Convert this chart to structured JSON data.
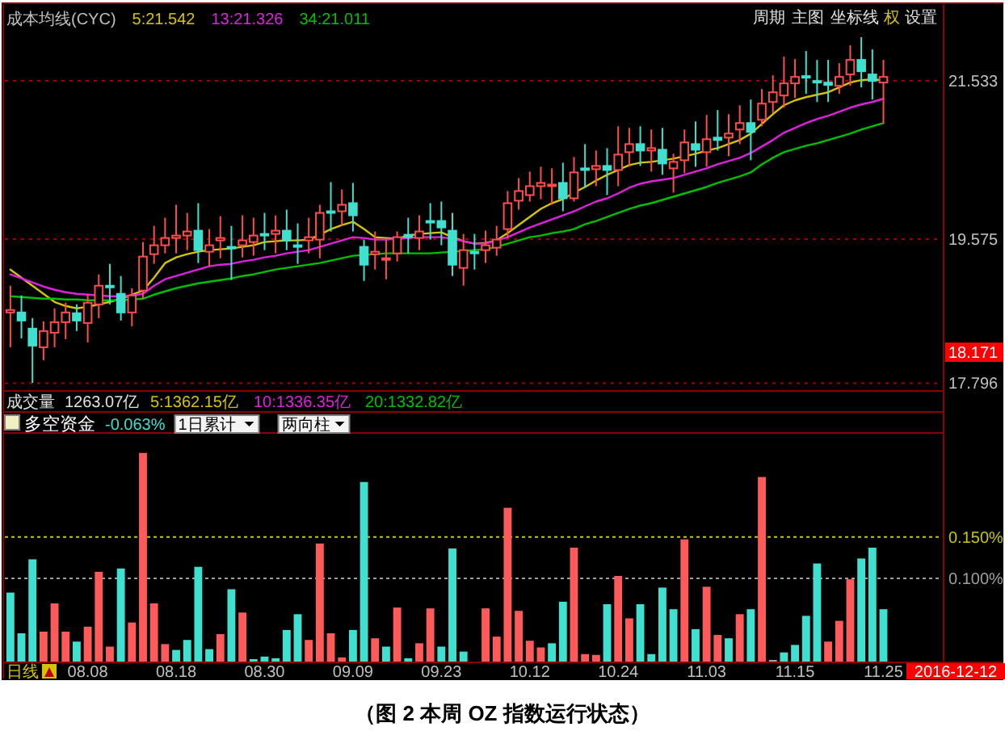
{
  "chart_data": [
    {
      "type": "candlestick",
      "title": "成本均线(CYC)",
      "categories": [
        null,
        null,
        null,
        null,
        null,
        null,
        null,
        null,
        null,
        null,
        null,
        null,
        null,
        null,
        null,
        null,
        null,
        null,
        null,
        null,
        null,
        null,
        null,
        null,
        null,
        null,
        null,
        null,
        null,
        null,
        null,
        null,
        null,
        null,
        null,
        null,
        null,
        null,
        null,
        null,
        null,
        null,
        null,
        null,
        null,
        null,
        null,
        null,
        null,
        null,
        null,
        null,
        null,
        null,
        null,
        null,
        null,
        null,
        null,
        null,
        null,
        null,
        null,
        null,
        null,
        null,
        null,
        null,
        null,
        null,
        null,
        null,
        null,
        null,
        null,
        null,
        null,
        null,
        null,
        null
      ],
      "ohlc": [
        [
          18.67,
          19.0,
          18.24,
          18.7
        ],
        [
          18.67,
          18.88,
          18.35,
          18.57
        ],
        [
          18.47,
          18.6,
          17.8,
          18.26
        ],
        [
          18.24,
          18.56,
          18.08,
          18.44
        ],
        [
          18.42,
          18.72,
          18.24,
          18.55
        ],
        [
          18.55,
          18.79,
          18.34,
          18.67
        ],
        [
          18.66,
          18.77,
          18.44,
          18.57
        ],
        [
          18.54,
          18.9,
          18.3,
          18.79
        ],
        [
          18.77,
          19.14,
          18.6,
          19.0
        ],
        [
          19.0,
          19.27,
          18.77,
          18.98
        ],
        [
          18.9,
          19.12,
          18.57,
          18.67
        ],
        [
          18.67,
          18.97,
          18.5,
          18.88
        ],
        [
          18.94,
          19.54,
          18.84,
          19.36
        ],
        [
          19.39,
          19.74,
          19.27,
          19.5
        ],
        [
          19.5,
          19.84,
          19.4,
          19.59
        ],
        [
          19.59,
          20.0,
          19.4,
          19.62
        ],
        [
          19.62,
          19.9,
          19.44,
          19.67
        ],
        [
          19.68,
          20.02,
          19.28,
          19.44
        ],
        [
          19.42,
          19.7,
          19.24,
          19.5
        ],
        [
          19.56,
          19.86,
          19.34,
          19.59
        ],
        [
          19.48,
          19.74,
          19.07,
          19.46
        ],
        [
          19.5,
          19.87,
          19.35,
          19.56
        ],
        [
          19.54,
          19.84,
          19.37,
          19.62
        ],
        [
          19.64,
          19.9,
          19.44,
          19.62
        ],
        [
          19.64,
          19.87,
          19.4,
          19.68
        ],
        [
          19.68,
          19.94,
          19.44,
          19.56
        ],
        [
          19.5,
          19.77,
          19.27,
          19.48
        ],
        [
          19.56,
          19.84,
          19.4,
          19.6
        ],
        [
          19.57,
          20.0,
          19.34,
          19.9
        ],
        [
          19.92,
          20.28,
          19.67,
          19.9
        ],
        [
          19.92,
          20.19,
          19.74,
          20.0
        ],
        [
          20.02,
          20.27,
          19.67,
          19.87
        ],
        [
          19.48,
          19.57,
          19.06,
          19.26
        ],
        [
          19.39,
          19.67,
          19.2,
          19.42
        ],
        [
          19.32,
          19.57,
          19.08,
          19.34
        ],
        [
          19.4,
          19.67,
          19.3,
          19.6
        ],
        [
          19.63,
          19.84,
          19.4,
          19.6
        ],
        [
          19.59,
          19.87,
          19.44,
          19.67
        ],
        [
          19.8,
          20.02,
          19.57,
          19.79
        ],
        [
          19.8,
          20.04,
          19.5,
          19.72
        ],
        [
          19.68,
          19.9,
          19.12,
          19.26
        ],
        [
          19.22,
          19.64,
          19.0,
          19.44
        ],
        [
          19.42,
          19.64,
          19.2,
          19.4
        ],
        [
          19.44,
          19.68,
          19.28,
          19.5
        ],
        [
          19.47,
          19.74,
          19.37,
          19.57
        ],
        [
          19.7,
          20.17,
          19.59,
          20.02
        ],
        [
          20.05,
          20.33,
          19.94,
          20.17
        ],
        [
          20.12,
          20.41,
          20.04,
          20.23
        ],
        [
          20.23,
          20.47,
          20.07,
          20.27
        ],
        [
          20.23,
          20.45,
          20.0,
          20.25
        ],
        [
          20.27,
          20.52,
          19.92,
          20.08
        ],
        [
          20.08,
          20.59,
          20.04,
          20.4
        ],
        [
          20.45,
          20.75,
          20.21,
          20.43
        ],
        [
          20.44,
          20.67,
          20.23,
          20.48
        ],
        [
          20.48,
          20.7,
          20.12,
          20.43
        ],
        [
          20.43,
          20.97,
          20.23,
          20.62
        ],
        [
          20.65,
          20.95,
          20.47,
          20.75
        ],
        [
          20.75,
          20.97,
          20.48,
          20.67
        ],
        [
          20.67,
          20.93,
          20.41,
          20.7
        ],
        [
          20.68,
          20.95,
          20.37,
          20.51
        ],
        [
          20.45,
          20.63,
          20.15,
          20.53
        ],
        [
          20.55,
          20.93,
          20.39,
          20.77
        ],
        [
          20.75,
          21.03,
          20.47,
          20.68
        ],
        [
          20.65,
          21.11,
          20.47,
          20.81
        ],
        [
          20.83,
          21.17,
          20.67,
          20.8
        ],
        [
          20.83,
          21.12,
          20.6,
          20.88
        ],
        [
          20.93,
          21.23,
          20.75,
          21.01
        ],
        [
          21.01,
          21.3,
          20.55,
          20.9
        ],
        [
          21.05,
          21.43,
          20.97,
          21.25
        ],
        [
          21.27,
          21.6,
          21.13,
          21.39
        ],
        [
          21.35,
          21.83,
          21.2,
          21.5
        ],
        [
          21.5,
          21.8,
          21.32,
          21.58
        ],
        [
          21.59,
          21.9,
          21.37,
          21.57
        ],
        [
          21.53,
          21.79,
          21.27,
          21.52
        ],
        [
          21.51,
          21.79,
          21.27,
          21.48
        ],
        [
          21.47,
          21.75,
          21.37,
          21.58
        ],
        [
          21.61,
          21.97,
          21.47,
          21.79
        ],
        [
          21.79,
          22.07,
          21.45,
          21.65
        ],
        [
          21.61,
          21.92,
          21.3,
          21.53
        ],
        [
          21.51,
          21.79,
          21.01,
          21.58
        ]
      ],
      "colors": [
        "#ff4d4d",
        "#40e0d0",
        "#40e0d0",
        "#ff4d4d",
        "#ff4d4d",
        "#ff4d4d",
        "#40e0d0",
        "#ff4d4d",
        "#ff4d4d",
        "#40e0d0",
        "#40e0d0",
        "#ff4d4d",
        "#ff4d4d",
        "#ff4d4d",
        "#ff4d4d",
        "#ff4d4d",
        "#ff4d4d",
        "#40e0d0",
        "#ff4d4d",
        "#ff4d4d",
        "#40e0d0",
        "#ff4d4d",
        "#ff4d4d",
        "#40e0d0",
        "#ff4d4d",
        "#40e0d0",
        "#40e0d0",
        "#ff4d4d",
        "#ff4d4d",
        "#40e0d0",
        "#ff4d4d",
        "#40e0d0",
        "#40e0d0",
        "#ff4d4d",
        "#ff4d4d",
        "#ff4d4d",
        "#40e0d0",
        "#ff4d4d",
        "#40e0d0",
        "#40e0d0",
        "#40e0d0",
        "#ff4d4d",
        "#40e0d0",
        "#ff4d4d",
        "#ff4d4d",
        "#ff4d4d",
        "#ff4d4d",
        "#ff4d4d",
        "#ff4d4d",
        "#ff4d4d",
        "#40e0d0",
        "#ff4d4d",
        "#40e0d0",
        "#ff4d4d",
        "#40e0d0",
        "#ff4d4d",
        "#ff4d4d",
        "#40e0d0",
        "#ff4d4d",
        "#40e0d0",
        "#ff4d4d",
        "#ff4d4d",
        "#40e0d0",
        "#ff4d4d",
        "#40e0d0",
        "#ff4d4d",
        "#ff4d4d",
        "#40e0d0",
        "#ff4d4d",
        "#ff4d4d",
        "#ff4d4d",
        "#ff4d4d",
        "#40e0d0",
        "#40e0d0",
        "#40e0d0",
        "#ff4d4d",
        "#ff4d4d",
        "#40e0d0",
        "#40e0d0",
        "#ff4d4d"
      ],
      "series": [
        {
          "type": "line",
          "name": "5:21.542",
          "color": "#d4c400",
          "values": [
            19.2,
            19.1,
            19.0,
            18.9,
            18.8,
            18.75,
            18.72,
            18.74,
            18.77,
            18.8,
            18.84,
            18.89,
            18.94,
            19.1,
            19.28,
            19.35,
            19.39,
            19.42,
            19.44,
            19.45,
            19.46,
            19.48,
            19.5,
            19.54,
            19.55,
            19.56,
            19.56,
            19.57,
            19.63,
            19.7,
            19.75,
            19.79,
            19.7,
            19.6,
            19.59,
            19.58,
            19.62,
            19.64,
            19.65,
            19.66,
            19.6,
            19.55,
            19.52,
            19.53,
            19.56,
            19.65,
            19.75,
            19.85,
            19.95,
            20.02,
            20.07,
            20.15,
            20.22,
            20.3,
            20.37,
            20.43,
            20.49,
            20.52,
            20.53,
            20.55,
            20.57,
            20.6,
            20.63,
            20.67,
            20.7,
            20.75,
            20.8,
            20.88,
            21.0,
            21.12,
            21.23,
            21.29,
            21.33,
            21.36,
            21.39,
            21.45,
            21.51,
            21.54,
            21.55,
            21.54
          ]
        },
        {
          "type": "line",
          "name": "13:21.326",
          "color": "#e020e0",
          "values": [
            19.14,
            19.09,
            19.04,
            18.99,
            18.95,
            18.92,
            18.9,
            18.89,
            18.88,
            18.87,
            18.87,
            18.88,
            18.9,
            19.0,
            19.08,
            19.12,
            19.16,
            19.2,
            19.24,
            19.26,
            19.27,
            19.3,
            19.32,
            19.35,
            19.37,
            19.4,
            19.42,
            19.44,
            19.48,
            19.52,
            19.56,
            19.6,
            19.59,
            19.57,
            19.57,
            19.58,
            19.59,
            19.6,
            19.6,
            19.6,
            19.58,
            19.55,
            19.52,
            19.52,
            19.56,
            19.6,
            19.66,
            19.72,
            19.77,
            19.82,
            19.87,
            19.92,
            19.98,
            20.04,
            20.08,
            20.14,
            20.21,
            20.26,
            20.29,
            20.31,
            20.33,
            20.37,
            20.41,
            20.45,
            20.5,
            20.54,
            20.58,
            20.64,
            20.72,
            20.8,
            20.89,
            20.95,
            21.01,
            21.06,
            21.1,
            21.15,
            21.2,
            21.24,
            21.27,
            21.31
          ]
        },
        {
          "type": "line",
          "name": "34:21.011",
          "color": "#00c000",
          "values": [
            18.87,
            18.86,
            18.85,
            18.84,
            18.84,
            18.83,
            18.83,
            18.82,
            18.82,
            18.82,
            18.82,
            18.83,
            18.84,
            18.89,
            18.93,
            18.97,
            19.0,
            19.03,
            19.05,
            19.07,
            19.09,
            19.12,
            19.14,
            19.17,
            19.2,
            19.22,
            19.24,
            19.26,
            19.28,
            19.31,
            19.34,
            19.37,
            19.38,
            19.39,
            19.4,
            19.4,
            19.4,
            19.4,
            19.4,
            19.41,
            19.42,
            19.43,
            19.44,
            19.45,
            19.48,
            19.52,
            19.56,
            19.6,
            19.62,
            19.65,
            19.67,
            19.7,
            19.76,
            19.8,
            19.85,
            19.9,
            19.95,
            19.99,
            20.02,
            20.06,
            20.1,
            20.14,
            20.18,
            20.22,
            20.27,
            20.31,
            20.35,
            20.4,
            20.5,
            20.58,
            20.65,
            20.69,
            20.73,
            20.76,
            20.8,
            20.84,
            20.88,
            20.93,
            20.97,
            21.01
          ]
        }
      ],
      "ylim": [
        17.72,
        22.47
      ],
      "yticks": [
        17.796,
        19.575,
        21.533
      ],
      "grid": "y",
      "legend": "top left",
      "tick_labels": "y",
      "annotations": [
        "周期",
        "主图",
        "坐标线",
        "权",
        "设置",
        "18.171"
      ]
    },
    {
      "type": "bar",
      "title": "多空资金",
      "subtitle": "-0.063%",
      "xlabel": "日线",
      "categories": [
        null,
        null,
        null,
        null,
        null,
        null,
        null,
        "08.08",
        null,
        null,
        null,
        null,
        null,
        null,
        null,
        "08.18",
        null,
        null,
        null,
        null,
        null,
        null,
        null,
        "08.30",
        null,
        null,
        null,
        null,
        null,
        null,
        null,
        "09.09",
        null,
        null,
        null,
        null,
        null,
        null,
        null,
        "09.23",
        null,
        null,
        null,
        null,
        null,
        null,
        null,
        "10.12",
        null,
        null,
        null,
        null,
        null,
        null,
        null,
        "10.24",
        null,
        null,
        null,
        null,
        null,
        null,
        null,
        "11.03",
        null,
        null,
        null,
        null,
        null,
        null,
        null,
        "11.15",
        null,
        null,
        null,
        null,
        null,
        null,
        null,
        "11.25"
      ],
      "values": [
        0.083,
        0.034,
        0.123,
        0.036,
        0.07,
        0.036,
        0.024,
        0.042,
        0.108,
        0.018,
        0.112,
        0.047,
        0.251,
        0.07,
        0.021,
        0.014,
        0.026,
        0.114,
        0.015,
        0.033,
        0.087,
        0.059,
        0.003,
        0.006,
        0.004,
        0.038,
        0.057,
        0.026,
        0.142,
        0.034,
        0.005,
        0.038,
        0.216,
        0.028,
        0.018,
        0.065,
        0.004,
        0.022,
        0.064,
        0.018,
        0.136,
        0.012,
        null,
        0.064,
        0.03,
        0.185,
        0.061,
        0.025,
        0.017,
        0.022,
        0.072,
        0.137,
        0.009,
        0.008,
        0.069,
        0.103,
        0.052,
        0.069,
        0.009,
        0.089,
        0.063,
        0.147,
        0.039,
        0.09,
        0.032,
        0.028,
        0.057,
        0.063,
        0.222,
        0.002,
        0.011,
        0.02,
        0.055,
        0.118,
        0.024,
        0.049,
        0.099,
        0.124,
        0.137,
        0.063
      ],
      "colors": [
        "#40e0d0",
        "#40e0d0",
        "#40e0d0",
        "#ff5a5a",
        "#ff5a5a",
        "#ff5a5a",
        "#40e0d0",
        "#ff5a5a",
        "#ff5a5a",
        "#ff5a5a",
        "#40e0d0",
        "#ff5a5a",
        "#ff5a5a",
        "#ff5a5a",
        "#ff5a5a",
        "#40e0d0",
        "#40e0d0",
        "#40e0d0",
        "#40e0d0",
        "#ff5a5a",
        "#40e0d0",
        "#ff5a5a",
        "#40e0d0",
        "#40e0d0",
        "#40e0d0",
        "#40e0d0",
        "#40e0d0",
        "#ff5a5a",
        "#ff5a5a",
        "#ff5a5a",
        "#ff5a5a",
        "#40e0d0",
        "#40e0d0",
        "#ff5a5a",
        "#40e0d0",
        "#ff5a5a",
        "#40e0d0",
        "#ff5a5a",
        "#ff5a5a",
        "#40e0d0",
        "#40e0d0",
        "#40e0d0",
        null,
        "#ff5a5a",
        "#ff5a5a",
        "#ff5a5a",
        "#ff5a5a",
        "#ff5a5a",
        "#ff5a5a",
        "#40e0d0",
        "#40e0d0",
        "#ff5a5a",
        "#ff5a5a",
        "#ff5a5a",
        "#40e0d0",
        "#ff5a5a",
        "#ff5a5a",
        "#40e0d0",
        "#40e0d0",
        "#40e0d0",
        "#40e0d0",
        "#ff5a5a",
        "#40e0d0",
        "#ff5a5a",
        "#ff5a5a",
        "#40e0d0",
        "#ff5a5a",
        "#40e0d0",
        "#ff5a5a",
        "#a0a0a0",
        "#40e0d0",
        "#40e0d0",
        "#40e0d0",
        "#40e0d0",
        "#ff5a5a",
        "#ff5a5a",
        "#ff5a5a",
        "#40e0d0",
        "#40e0d0",
        "#40e0d0"
      ],
      "ylim": [
        0,
        0.275
      ],
      "yticks": [
        {
          "value": 0.1,
          "label": "0.100%"
        },
        {
          "value": 0.15,
          "label": "0.150%"
        }
      ],
      "ref_lines": [
        {
          "axis": "y",
          "value": 0.15,
          "color": "#c8c800",
          "line_style": "dotted"
        },
        {
          "axis": "y",
          "value": 0.1,
          "color": "#a0a0a0",
          "line_style": "dotted"
        }
      ],
      "annotations": [
        "成交量",
        "1263.07亿",
        "5:1362.15亿",
        "10:1336.35亿",
        "20:1332.82亿",
        "1日累计",
        "两向柱",
        "2016-12-12",
        "（图 2 本周 OZ 指数运行状态）"
      ]
    }
  ]
}
